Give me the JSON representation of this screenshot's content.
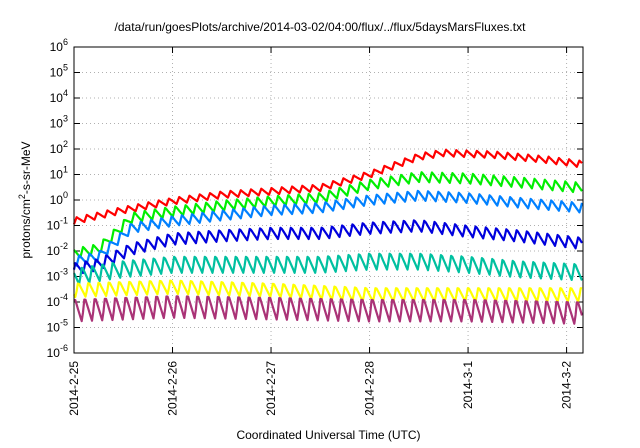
{
  "title": "/data/run/goesPlots/archive/2014-03-02/04:00/flux/../flux/5daysMarsFluxes.txt",
  "chart_data": {
    "type": "line",
    "title": "/data/run/goesPlots/archive/2014-03-02/04:00/flux/../flux/5daysMarsFluxes.txt",
    "xlabel": "Coordinated Universal Time (UTC)",
    "ylabel_parts": [
      "protons/cm",
      "2",
      "-s-sr-MeV"
    ],
    "yscale": "log",
    "ylim": [
      1e-06,
      1000000.0
    ],
    "y_ticks": [
      {
        "base": "10",
        "exp": "-6",
        "value": 1e-06
      },
      {
        "base": "10",
        "exp": "-5",
        "value": 1e-05
      },
      {
        "base": "10",
        "exp": "-4",
        "value": 0.0001
      },
      {
        "base": "10",
        "exp": "-3",
        "value": 0.001
      },
      {
        "base": "10",
        "exp": "-2",
        "value": 0.01
      },
      {
        "base": "10",
        "exp": "-1",
        "value": 0.1
      },
      {
        "base": "10",
        "exp": "0",
        "value": 1
      },
      {
        "base": "10",
        "exp": "1",
        "value": 10
      },
      {
        "base": "10",
        "exp": "2",
        "value": 100
      },
      {
        "base": "10",
        "exp": "3",
        "value": 1000
      },
      {
        "base": "10",
        "exp": "4",
        "value": 10000
      },
      {
        "base": "10",
        "exp": "5",
        "value": 100000
      },
      {
        "base": "10",
        "exp": "6",
        "value": 1000000
      }
    ],
    "x_ticks": [
      "2014-2-25",
      "2014-2-26",
      "2014-2-27",
      "2014-2-28",
      "2014-3-1",
      "2014-3-2"
    ],
    "xlim": [
      "2014-02-25 00:00",
      "2014-03-02 04:00"
    ],
    "grid": true,
    "series": [
      {
        "color": "#ff0000",
        "x": [
          "2014-02-25 00:00",
          "2014-02-25 12:00",
          "2014-02-26 00:00",
          "2014-02-26 12:00",
          "2014-02-27 00:00",
          "2014-02-27 12:00",
          "2014-02-28 00:00",
          "2014-02-28 12:00",
          "2014-02-28 18:00",
          "2014-03-01 06:00",
          "2014-03-01 18:00",
          "2014-03-02 04:00"
        ],
        "y": [
          0.15,
          0.4,
          0.9,
          1.6,
          2.2,
          3.0,
          10,
          50,
          70,
          60,
          40,
          25
        ],
        "amplitude": 1.8
      },
      {
        "color": "#00ee00",
        "x": [
          "2014-02-25 00:00",
          "2014-02-25 06:00",
          "2014-02-25 14:00",
          "2014-02-26 00:00",
          "2014-02-26 12:00",
          "2014-02-27 00:00",
          "2014-02-27 12:00",
          "2014-02-28 00:00",
          "2014-02-28 12:00",
          "2014-03-01 00:00",
          "2014-03-01 12:00",
          "2014-03-02 04:00"
        ],
        "y": [
          0.008,
          0.012,
          0.2,
          0.35,
          0.6,
          0.9,
          1.2,
          4,
          8,
          7,
          5,
          3
        ],
        "amplitude": 2.5
      },
      {
        "color": "#0080ff",
        "x": [
          "2014-02-25 00:00",
          "2014-02-25 06:00",
          "2014-02-25 14:00",
          "2014-02-26 00:00",
          "2014-02-26 12:00",
          "2014-02-27 00:00",
          "2014-02-27 12:00",
          "2014-02-28 00:00",
          "2014-02-28 12:00",
          "2014-03-01 00:00",
          "2014-03-01 12:00",
          "2014-03-02 04:00"
        ],
        "y": [
          0.004,
          0.006,
          0.08,
          0.15,
          0.25,
          0.4,
          0.5,
          1.0,
          1.5,
          1.2,
          0.8,
          0.5
        ],
        "amplitude": 2.5
      },
      {
        "color": "#0000dd",
        "x": [
          "2014-02-25 00:00",
          "2014-02-25 06:00",
          "2014-02-25 14:00",
          "2014-02-26 00:00",
          "2014-02-26 12:00",
          "2014-02-27 00:00",
          "2014-02-27 12:00",
          "2014-02-28 00:00",
          "2014-02-28 12:00",
          "2014-03-01 00:00",
          "2014-03-01 12:00",
          "2014-03-02 04:00"
        ],
        "y": [
          0.002,
          0.003,
          0.012,
          0.03,
          0.04,
          0.05,
          0.05,
          0.08,
          0.1,
          0.06,
          0.04,
          0.02
        ],
        "amplitude": 3
      },
      {
        "color": "#00c0a0",
        "x": [
          "2014-02-25 00:00",
          "2014-02-25 12:00",
          "2014-02-26 00:00",
          "2014-02-26 12:00",
          "2014-02-27 00:00",
          "2014-02-27 12:00",
          "2014-02-28 00:00",
          "2014-02-28 12:00",
          "2014-03-01 00:00",
          "2014-03-01 12:00",
          "2014-03-02 04:00"
        ],
        "y": [
          0.001,
          0.002,
          0.003,
          0.003,
          0.003,
          0.003,
          0.004,
          0.004,
          0.003,
          0.002,
          0.0015
        ],
        "amplitude": 5
      },
      {
        "color": "#ffff00",
        "x": [
          "2014-02-25 00:00",
          "2014-02-26 00:00",
          "2014-02-27 00:00",
          "2014-02-28 00:00",
          "2014-03-01 00:00",
          "2014-03-02 04:00"
        ],
        "y": [
          0.0003,
          0.0004,
          0.0003,
          0.0002,
          0.0002,
          0.0002
        ],
        "amplitude": 4
      },
      {
        "color": "#aa3377",
        "x": [
          "2014-02-25 00:00",
          "2014-02-26 00:00",
          "2014-02-27 00:00",
          "2014-02-28 00:00",
          "2014-03-01 00:00",
          "2014-03-02 04:00"
        ],
        "y": [
          5e-05,
          7e-05,
          6e-05,
          5e-05,
          5e-05,
          4e-05
        ],
        "amplitude": 10
      }
    ]
  }
}
